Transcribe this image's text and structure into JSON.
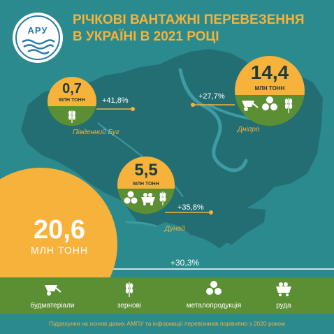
{
  "logo": {
    "text": "АРУ"
  },
  "title": {
    "line1": "РІЧКОВІ ВАНТАЖНІ ПЕРЕВЕЗЕННЯ",
    "line2": "В УКРАЇНІ В 2021 РОЦІ"
  },
  "rivers": [
    {
      "id": "pivdennyi-buh",
      "name": "Південний Буг",
      "value": "0,7",
      "unit": "МЛН ТОНН",
      "change": "+41,8%",
      "cargo_icons": [
        "wheat-icon"
      ]
    },
    {
      "id": "dnipro",
      "name": "Дніпро",
      "value": "14,4",
      "unit": "МЛН ТОНН",
      "change": "+27,7%",
      "cargo_icons": [
        "wheelbarrow-icon",
        "metal-pipes-icon",
        "wheat-icon"
      ]
    },
    {
      "id": "dunai",
      "name": "Дунай",
      "value": "5,5",
      "unit": "МЛН ТОНН",
      "change": "+35,8%",
      "cargo_icons": [
        "metal-pipes-icon",
        "ore-cart-icon",
        "wheat-icon"
      ]
    }
  ],
  "total": {
    "value": "20,6",
    "unit": "МЛН ТОНН",
    "change": "+30,3%"
  },
  "legend": [
    {
      "label": "будматеріали",
      "icon": "wheelbarrow-icon"
    },
    {
      "label": "зернові",
      "icon": "wheat-icon"
    },
    {
      "label": "металопродукція",
      "icon": "metal-pipes-icon"
    },
    {
      "label": "руда",
      "icon": "ore-cart-icon"
    }
  ],
  "footer": "Підрахунки на основі даних АМПУ та інформації перевізників порівняно з 2020 роком",
  "colors": {
    "background": "#2b8a8e",
    "map": "#246f74",
    "accent": "#f6b23a",
    "green": "#5c8f33",
    "water": "#3d9ba3"
  }
}
